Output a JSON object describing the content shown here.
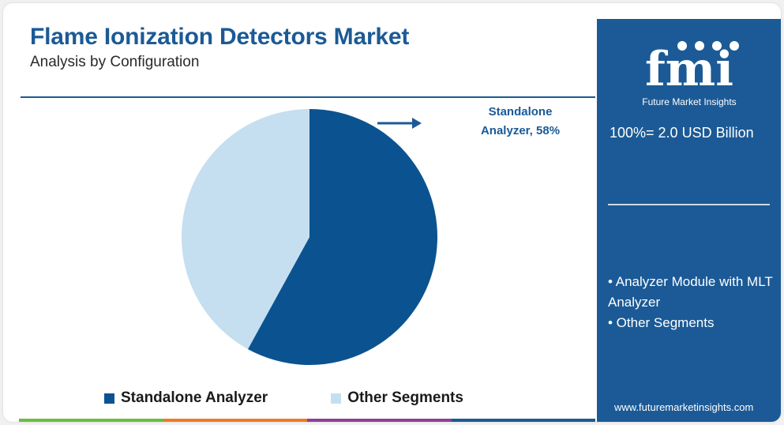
{
  "header": {
    "title": "Flame Ionization Detectors Market",
    "subtitle": "Analysis by Configuration"
  },
  "chart_data": {
    "type": "pie",
    "title": "Flame Ionization Detectors Market",
    "subtitle": "Analysis by Configuration",
    "slices": [
      {
        "name": "Standalone Analyzer",
        "value": 58,
        "color": "#0b5390"
      },
      {
        "name": "Other Segments",
        "value": 42,
        "color": "#c5dff0"
      }
    ],
    "annotation": "Standalone Analyzer, 58%",
    "legend_position": "bottom"
  },
  "callout": {
    "line1": "Standalone",
    "line2": "Analyzer, 58%"
  },
  "legend": [
    {
      "label": "Standalone Analyzer",
      "color": "#0b5390"
    },
    {
      "label": "Other Segments",
      "color": "#c5dff0"
    }
  ],
  "side_panel": {
    "logo_text": "fmi",
    "logo_subtitle": "Future Market Insights",
    "total": "100%= 2.0 USD Billion",
    "bullets": [
      "• Analyzer Module with MLT Analyzer",
      "• Other Segments"
    ],
    "url": "www.futuremarketinsights.com"
  },
  "colors": {
    "brand_blue": "#1b5a96",
    "dark_slice": "#0b5390",
    "light_slice": "#c5dff0",
    "bottom_bar": [
      "#6abd45",
      "#f07a22",
      "#8f3e97",
      "#1b5a96"
    ]
  }
}
